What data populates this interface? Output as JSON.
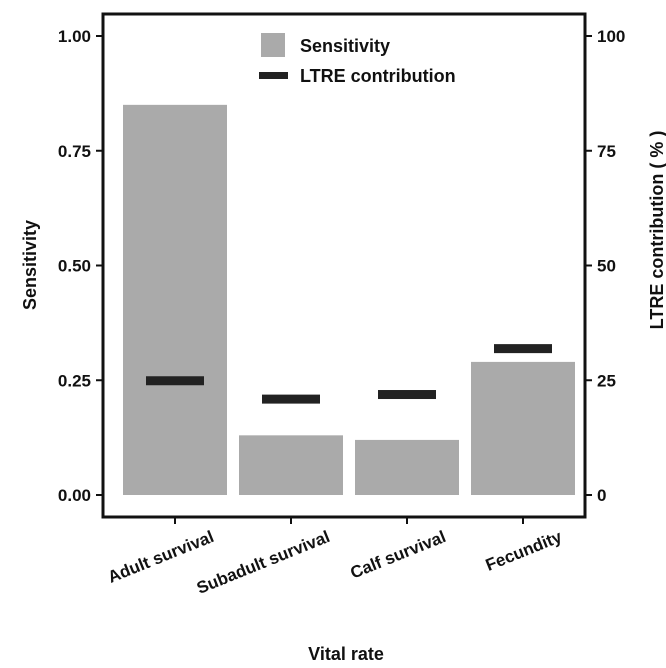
{
  "chart_data": {
    "type": "bar",
    "categories": [
      "Adult survival",
      "Subadult survival",
      "Calf survival",
      "Fecundity"
    ],
    "series": [
      {
        "name": "Sensitivity",
        "axis": "left",
        "mark": "bar",
        "values": [
          0.85,
          0.13,
          0.12,
          0.29
        ]
      },
      {
        "name": "LTRE contribution",
        "axis": "right",
        "mark": "dash",
        "values": [
          25,
          21,
          22,
          32
        ]
      }
    ],
    "xlabel": "Vital rate",
    "ylabel": "Sensitivity",
    "y2label": "LTRE contribution ( % )",
    "ylim": [
      0,
      1
    ],
    "y2lim": [
      0,
      100
    ],
    "yticks": [
      "0.00",
      "0.25",
      "0.50",
      "0.75",
      "1.00"
    ],
    "y2ticks": [
      "0",
      "25",
      "50",
      "75",
      "100"
    ],
    "grid": false,
    "legend_position": "top",
    "colors": {
      "bar": "#aaaaaa",
      "dash": "#222222",
      "axis": "#111111"
    }
  }
}
